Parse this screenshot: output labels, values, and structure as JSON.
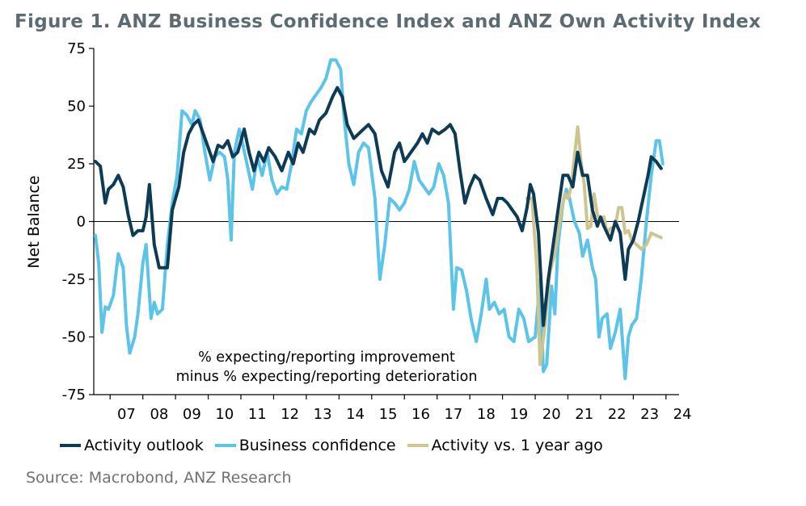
{
  "title": "Figure 1. ANZ Business Confidence Index and ANZ Own Activity Index",
  "source": "Source: Macrobond, ANZ Research",
  "chart_data": {
    "type": "line",
    "title": "Figure 1. ANZ Business Confidence Index and ANZ Own Activity Index",
    "xlabel": "",
    "ylabel": "Net Balance",
    "xlim": [
      2006.5,
      2024.4
    ],
    "ylim": [
      -75,
      75
    ],
    "yticks": [
      -75,
      -50,
      -25,
      0,
      25,
      50,
      75
    ],
    "xtick_labels": [
      "07",
      "08",
      "09",
      "10",
      "11",
      "12",
      "13",
      "14",
      "15",
      "16",
      "17",
      "18",
      "19",
      "20",
      "21",
      "22",
      "23",
      "24"
    ],
    "annotation": [
      "% expecting/reporting improvement",
      "minus % expecting/reporting deterioration"
    ],
    "zero_line": true,
    "legend_position": "bottom",
    "series": [
      {
        "name": "Activity outlook",
        "color": "#0d3a55",
        "points": [
          [
            2006.55,
            26
          ],
          [
            2006.7,
            24
          ],
          [
            2006.85,
            8
          ],
          [
            2006.95,
            14
          ],
          [
            2007.1,
            16
          ],
          [
            2007.25,
            20
          ],
          [
            2007.4,
            15
          ],
          [
            2007.55,
            3
          ],
          [
            2007.7,
            -6
          ],
          [
            2007.85,
            -4
          ],
          [
            2008.0,
            -4
          ],
          [
            2008.1,
            2
          ],
          [
            2008.2,
            16
          ],
          [
            2008.35,
            -10
          ],
          [
            2008.5,
            -20
          ],
          [
            2008.6,
            -20
          ],
          [
            2008.75,
            -20
          ],
          [
            2008.9,
            5
          ],
          [
            2009.1,
            15
          ],
          [
            2009.25,
            30
          ],
          [
            2009.4,
            38
          ],
          [
            2009.55,
            42
          ],
          [
            2009.7,
            44
          ],
          [
            2009.85,
            38
          ],
          [
            2010.0,
            32
          ],
          [
            2010.15,
            26
          ],
          [
            2010.3,
            33
          ],
          [
            2010.45,
            32
          ],
          [
            2010.6,
            35
          ],
          [
            2010.75,
            28
          ],
          [
            2010.9,
            30
          ],
          [
            2011.1,
            40
          ],
          [
            2011.25,
            30
          ],
          [
            2011.4,
            22
          ],
          [
            2011.55,
            30
          ],
          [
            2011.7,
            26
          ],
          [
            2011.85,
            32
          ],
          [
            2012.05,
            28
          ],
          [
            2012.25,
            22
          ],
          [
            2012.45,
            30
          ],
          [
            2012.6,
            25
          ],
          [
            2012.75,
            34
          ],
          [
            2012.9,
            30
          ],
          [
            2013.1,
            40
          ],
          [
            2013.25,
            38
          ],
          [
            2013.4,
            44
          ],
          [
            2013.6,
            47
          ],
          [
            2013.8,
            54
          ],
          [
            2013.95,
            58
          ],
          [
            2014.1,
            54
          ],
          [
            2014.25,
            42
          ],
          [
            2014.45,
            36
          ],
          [
            2014.6,
            38
          ],
          [
            2014.75,
            40
          ],
          [
            2014.9,
            42
          ],
          [
            2015.1,
            38
          ],
          [
            2015.3,
            22
          ],
          [
            2015.5,
            15
          ],
          [
            2015.7,
            30
          ],
          [
            2015.85,
            34
          ],
          [
            2016.0,
            26
          ],
          [
            2016.2,
            30
          ],
          [
            2016.4,
            34
          ],
          [
            2016.55,
            38
          ],
          [
            2016.7,
            34
          ],
          [
            2016.85,
            40
          ],
          [
            2017.05,
            38
          ],
          [
            2017.25,
            40
          ],
          [
            2017.4,
            42
          ],
          [
            2017.55,
            38
          ],
          [
            2017.7,
            22
          ],
          [
            2017.85,
            8
          ],
          [
            2018.0,
            15
          ],
          [
            2018.15,
            20
          ],
          [
            2018.3,
            18
          ],
          [
            2018.5,
            10
          ],
          [
            2018.7,
            3
          ],
          [
            2018.85,
            10
          ],
          [
            2019.0,
            10
          ],
          [
            2019.15,
            8
          ],
          [
            2019.3,
            5
          ],
          [
            2019.45,
            2
          ],
          [
            2019.6,
            -4
          ],
          [
            2019.75,
            6
          ],
          [
            2019.85,
            16
          ],
          [
            2019.95,
            12
          ],
          [
            2020.1,
            -5
          ],
          [
            2020.25,
            -45
          ],
          [
            2020.4,
            -25
          ],
          [
            2020.55,
            -10
          ],
          [
            2020.7,
            5
          ],
          [
            2020.85,
            20
          ],
          [
            2021.0,
            20
          ],
          [
            2021.15,
            15
          ],
          [
            2021.3,
            30
          ],
          [
            2021.45,
            20
          ],
          [
            2021.6,
            20
          ],
          [
            2021.75,
            5
          ],
          [
            2021.9,
            -2
          ],
          [
            2022.0,
            2
          ],
          [
            2022.1,
            -2
          ],
          [
            2022.3,
            -8
          ],
          [
            2022.45,
            0
          ],
          [
            2022.6,
            -5
          ],
          [
            2022.75,
            -25
          ],
          [
            2022.85,
            -12
          ],
          [
            2023.0,
            -8
          ],
          [
            2023.15,
            0
          ],
          [
            2023.3,
            10
          ],
          [
            2023.45,
            20
          ],
          [
            2023.55,
            28
          ],
          [
            2023.7,
            26
          ],
          [
            2023.85,
            23
          ]
        ]
      },
      {
        "name": "Business confidence",
        "color": "#5bc4e8",
        "points": [
          [
            2006.55,
            -6
          ],
          [
            2006.65,
            -18
          ],
          [
            2006.75,
            -48
          ],
          [
            2006.85,
            -37
          ],
          [
            2006.95,
            -38
          ],
          [
            2007.1,
            -32
          ],
          [
            2007.25,
            -14
          ],
          [
            2007.4,
            -20
          ],
          [
            2007.5,
            -45
          ],
          [
            2007.6,
            -57
          ],
          [
            2007.75,
            -50
          ],
          [
            2007.85,
            -40
          ],
          [
            2008.0,
            -18
          ],
          [
            2008.1,
            -10
          ],
          [
            2008.25,
            -42
          ],
          [
            2008.35,
            -35
          ],
          [
            2008.45,
            -40
          ],
          [
            2008.6,
            -38
          ],
          [
            2008.75,
            -10
          ],
          [
            2008.9,
            8
          ],
          [
            2009.05,
            20
          ],
          [
            2009.2,
            48
          ],
          [
            2009.35,
            46
          ],
          [
            2009.5,
            42
          ],
          [
            2009.6,
            48
          ],
          [
            2009.75,
            44
          ],
          [
            2009.9,
            30
          ],
          [
            2010.05,
            18
          ],
          [
            2010.2,
            28
          ],
          [
            2010.35,
            30
          ],
          [
            2010.5,
            28
          ],
          [
            2010.6,
            18
          ],
          [
            2010.7,
            -8
          ],
          [
            2010.8,
            30
          ],
          [
            2010.95,
            40
          ],
          [
            2011.05,
            34
          ],
          [
            2011.2,
            24
          ],
          [
            2011.35,
            14
          ],
          [
            2011.5,
            28
          ],
          [
            2011.65,
            20
          ],
          [
            2011.8,
            30
          ],
          [
            2011.95,
            18
          ],
          [
            2012.1,
            12
          ],
          [
            2012.25,
            15
          ],
          [
            2012.4,
            14
          ],
          [
            2012.55,
            25
          ],
          [
            2012.7,
            40
          ],
          [
            2012.85,
            38
          ],
          [
            2013.0,
            48
          ],
          [
            2013.15,
            52
          ],
          [
            2013.3,
            55
          ],
          [
            2013.45,
            58
          ],
          [
            2013.6,
            62
          ],
          [
            2013.75,
            70
          ],
          [
            2013.9,
            70
          ],
          [
            2014.05,
            66
          ],
          [
            2014.15,
            46
          ],
          [
            2014.3,
            25
          ],
          [
            2014.45,
            16
          ],
          [
            2014.6,
            30
          ],
          [
            2014.75,
            34
          ],
          [
            2014.9,
            32
          ],
          [
            2015.1,
            10
          ],
          [
            2015.25,
            -25
          ],
          [
            2015.4,
            -10
          ],
          [
            2015.55,
            10
          ],
          [
            2015.7,
            8
          ],
          [
            2015.85,
            5
          ],
          [
            2016.0,
            8
          ],
          [
            2016.15,
            14
          ],
          [
            2016.3,
            26
          ],
          [
            2016.45,
            18
          ],
          [
            2016.6,
            15
          ],
          [
            2016.75,
            12
          ],
          [
            2016.9,
            15
          ],
          [
            2017.05,
            25
          ],
          [
            2017.2,
            20
          ],
          [
            2017.35,
            8
          ],
          [
            2017.5,
            -38
          ],
          [
            2017.6,
            -20
          ],
          [
            2017.75,
            -21
          ],
          [
            2017.9,
            -30
          ],
          [
            2018.05,
            -43
          ],
          [
            2018.2,
            -52
          ],
          [
            2018.35,
            -40
          ],
          [
            2018.5,
            -25
          ],
          [
            2018.6,
            -38
          ],
          [
            2018.75,
            -35
          ],
          [
            2018.9,
            -40
          ],
          [
            2019.05,
            -38
          ],
          [
            2019.2,
            -50
          ],
          [
            2019.35,
            -52
          ],
          [
            2019.5,
            -38
          ],
          [
            2019.65,
            -42
          ],
          [
            2019.8,
            -52
          ],
          [
            2020.0,
            -50
          ],
          [
            2020.15,
            -25
          ],
          [
            2020.25,
            -65
          ],
          [
            2020.35,
            -62
          ],
          [
            2020.5,
            -28
          ],
          [
            2020.6,
            -40
          ],
          [
            2020.7,
            -10
          ],
          [
            2020.85,
            8
          ],
          [
            2020.95,
            14
          ],
          [
            2021.05,
            10
          ],
          [
            2021.2,
            0
          ],
          [
            2021.35,
            -5
          ],
          [
            2021.45,
            -15
          ],
          [
            2021.6,
            -8
          ],
          [
            2021.75,
            -20
          ],
          [
            2021.85,
            -25
          ],
          [
            2021.95,
            -50
          ],
          [
            2022.05,
            -42
          ],
          [
            2022.2,
            -40
          ],
          [
            2022.3,
            -55
          ],
          [
            2022.45,
            -48
          ],
          [
            2022.6,
            -38
          ],
          [
            2022.75,
            -68
          ],
          [
            2022.85,
            -50
          ],
          [
            2022.95,
            -45
          ],
          [
            2023.1,
            -42
          ],
          [
            2023.25,
            -24
          ],
          [
            2023.4,
            0
          ],
          [
            2023.55,
            20
          ],
          [
            2023.7,
            35
          ],
          [
            2023.8,
            35
          ],
          [
            2023.9,
            25
          ]
        ]
      },
      {
        "name": "Activity vs. 1 year ago",
        "color": "#cdc58f",
        "points": [
          [
            2019.75,
            10
          ],
          [
            2019.9,
            10
          ],
          [
            2020.05,
            -20
          ],
          [
            2020.15,
            -62
          ],
          [
            2020.3,
            -45
          ],
          [
            2020.45,
            -22
          ],
          [
            2020.6,
            -14
          ],
          [
            2020.75,
            0
          ],
          [
            2020.9,
            12
          ],
          [
            2021.0,
            10
          ],
          [
            2021.1,
            15
          ],
          [
            2021.2,
            28
          ],
          [
            2021.3,
            41
          ],
          [
            2021.4,
            26
          ],
          [
            2021.5,
            16
          ],
          [
            2021.6,
            -3
          ],
          [
            2021.7,
            -2
          ],
          [
            2021.8,
            12
          ],
          [
            2021.9,
            3
          ],
          [
            2022.0,
            0
          ],
          [
            2022.1,
            2
          ],
          [
            2022.2,
            -5
          ],
          [
            2022.3,
            -3
          ],
          [
            2022.45,
            -2
          ],
          [
            2022.55,
            6
          ],
          [
            2022.65,
            6
          ],
          [
            2022.75,
            -5
          ],
          [
            2022.85,
            -4
          ],
          [
            2022.95,
            -8
          ],
          [
            2023.1,
            -10
          ],
          [
            2023.25,
            -12
          ],
          [
            2023.4,
            -10
          ],
          [
            2023.55,
            -5
          ],
          [
            2023.7,
            -6
          ],
          [
            2023.85,
            -7
          ]
        ]
      }
    ]
  }
}
